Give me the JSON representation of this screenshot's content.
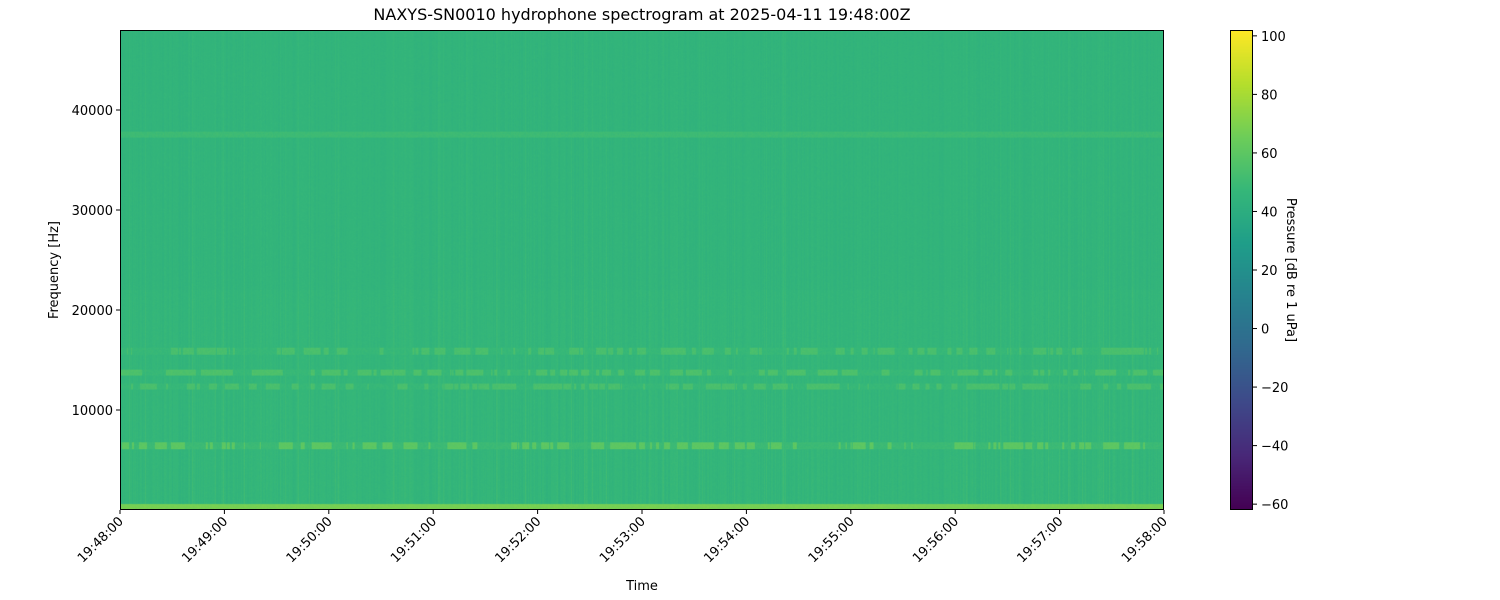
{
  "chart_data": {
    "type": "heatmap",
    "title": "NAXYS-SN0010 hydrophone spectrogram at 2025-04-11 19:48:00Z",
    "xlabel": "Time",
    "ylabel": "Frequency [Hz]",
    "xlim": [
      "19:48:00",
      "19:58:00"
    ],
    "ylim": [
      0,
      48000
    ],
    "x_ticks": [
      "19:48:00",
      "19:49:00",
      "19:50:00",
      "19:51:00",
      "19:52:00",
      "19:53:00",
      "19:54:00",
      "19:55:00",
      "19:56:00",
      "19:57:00",
      "19:58:00"
    ],
    "y_ticks": [
      10000,
      20000,
      30000,
      40000
    ],
    "colorbar": {
      "label": "Pressure [dB re 1 uPa]",
      "colormap": "viridis",
      "range": [
        -62,
        102
      ],
      "ticks": [
        -60,
        -40,
        -20,
        0,
        20,
        40,
        60,
        80,
        100
      ]
    },
    "background_level_db": 45,
    "frequency_bands": [
      {
        "freq_range_hz": [
          0,
          500
        ],
        "level_db": 68
      },
      {
        "freq_range_hz": [
          6000,
          6700
        ],
        "level_db": 60,
        "intermittent": true
      },
      {
        "freq_range_hz": [
          12000,
          12600
        ],
        "level_db": 54,
        "intermittent": true
      },
      {
        "freq_range_hz": [
          13400,
          14000
        ],
        "level_db": 55,
        "intermittent": true
      },
      {
        "freq_range_hz": [
          15500,
          16200
        ],
        "level_db": 54,
        "intermittent": true
      },
      {
        "freq_range_hz": [
          37300,
          37900
        ],
        "level_db": 50
      }
    ],
    "grid": false
  }
}
